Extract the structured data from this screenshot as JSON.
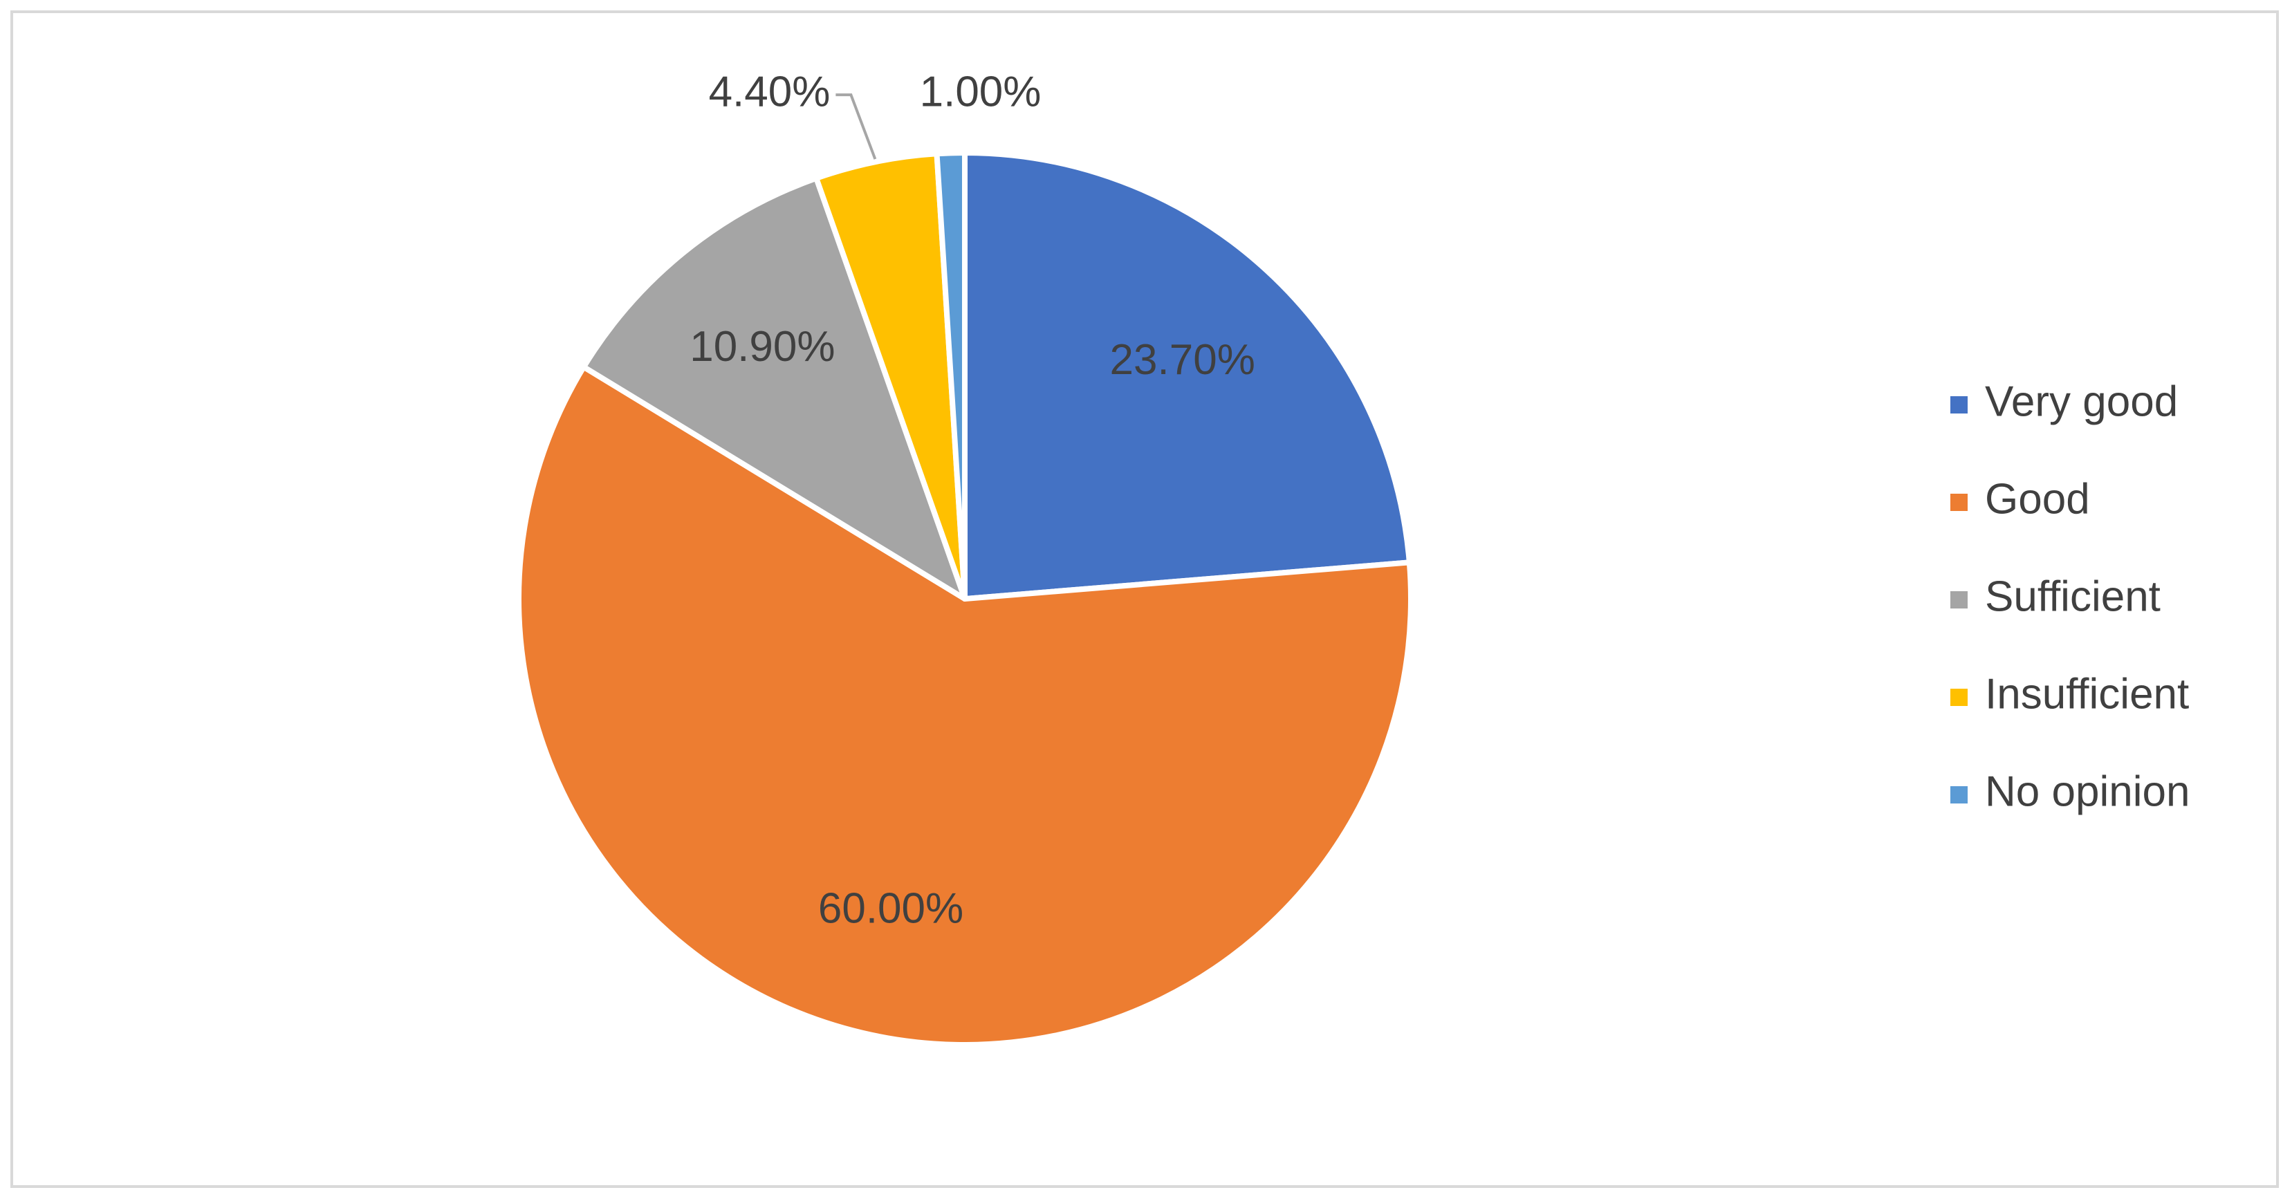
{
  "chart_data": {
    "type": "pie",
    "categories": [
      "Very good",
      "Good",
      "Sufficient",
      "Insufficient",
      "No opinion"
    ],
    "values": [
      23.7,
      60.0,
      10.9,
      4.4,
      1.0
    ],
    "value_labels": [
      "23.70%",
      "60.00%",
      "10.90%",
      "4.40%",
      "1.00%"
    ],
    "colors": [
      "#4472c4",
      "#ed7d31",
      "#a5a5a5",
      "#ffc000",
      "#5b9bd5"
    ],
    "legend": "right"
  }
}
